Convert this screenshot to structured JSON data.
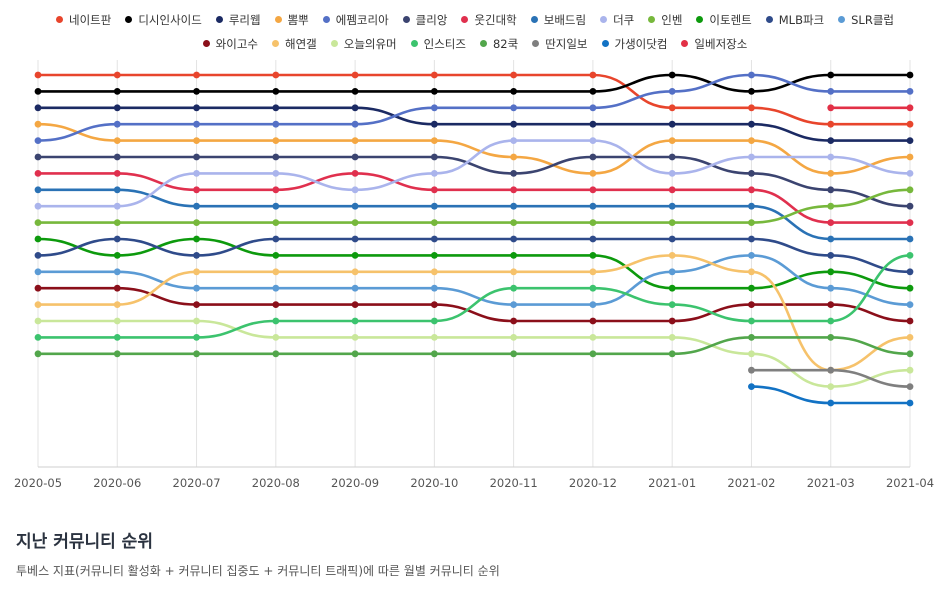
{
  "chart_data": {
    "type": "line",
    "title": "지난 커뮤니티 순위",
    "subtitle": "투베스 지표(커뮤니티 활성화 + 커뮤니티 집중도 + 커뮤니티 트래픽)에 따른 월별 커뮤니티 순위",
    "x": [
      "2020-05",
      "2020-06",
      "2020-07",
      "2020-08",
      "2020-09",
      "2020-10",
      "2020-11",
      "2020-12",
      "2021-01",
      "2021-02",
      "2021-03",
      "2021-04"
    ],
    "y_reversed": true,
    "ylim": [
      1,
      25
    ],
    "grid": "vertical",
    "legend_position": "top",
    "series": [
      {
        "name": "네이트판",
        "color": "#e8452c",
        "values": [
          1,
          1,
          1,
          1,
          1,
          1,
          1,
          1,
          3,
          3,
          4,
          4
        ]
      },
      {
        "name": "디시인사이드",
        "color": "#000000",
        "values": [
          2,
          2,
          2,
          2,
          2,
          2,
          2,
          2,
          1,
          2,
          1,
          1
        ]
      },
      {
        "name": "루리웹",
        "color": "#1b2a63",
        "values": [
          3,
          3,
          3,
          3,
          3,
          4,
          4,
          4,
          4,
          4,
          5,
          5
        ]
      },
      {
        "name": "뽐뿌",
        "color": "#f4a743",
        "values": [
          4,
          5,
          5,
          5,
          5,
          5,
          6,
          7,
          5,
          5,
          7,
          6
        ]
      },
      {
        "name": "에펨코리아",
        "color": "#5470c6",
        "values": [
          5,
          4,
          4,
          4,
          4,
          3,
          3,
          3,
          2,
          1,
          2,
          2
        ]
      },
      {
        "name": "클리앙",
        "color": "#3b4470",
        "values": [
          6,
          6,
          6,
          6,
          6,
          6,
          7,
          6,
          6,
          7,
          8,
          9
        ]
      },
      {
        "name": "웃긴대학",
        "color": "#e0304e",
        "values": [
          7,
          7,
          8,
          8,
          7,
          8,
          8,
          8,
          8,
          8,
          10,
          10
        ]
      },
      {
        "name": "보배드림",
        "color": "#2a72b5",
        "values": [
          8,
          8,
          9,
          9,
          9,
          9,
          9,
          9,
          9,
          9,
          11,
          11
        ]
      },
      {
        "name": "더쿠",
        "color": "#aab4ec",
        "values": [
          9,
          9,
          7,
          7,
          8,
          7,
          5,
          5,
          7,
          6,
          6,
          7
        ]
      },
      {
        "name": "인벤",
        "color": "#77b83c",
        "values": [
          10,
          10,
          10,
          10,
          10,
          10,
          10,
          10,
          10,
          10,
          9,
          8
        ]
      },
      {
        "name": "이토렌트",
        "color": "#0d9a0d",
        "values": [
          11,
          12,
          11,
          12,
          12,
          12,
          12,
          12,
          14,
          14,
          13,
          14
        ]
      },
      {
        "name": "MLB파크",
        "color": "#2f4b8a",
        "values": [
          12,
          11,
          12,
          11,
          11,
          11,
          11,
          11,
          11,
          11,
          12,
          13
        ]
      },
      {
        "name": "SLR클럽",
        "color": "#5b9bd5",
        "values": [
          13,
          13,
          14,
          14,
          14,
          14,
          15,
          15,
          13,
          12,
          14,
          15
        ]
      },
      {
        "name": "와이고수",
        "color": "#8b0f1a",
        "values": [
          14,
          14,
          15,
          15,
          15,
          15,
          16,
          16,
          16,
          15,
          15,
          16
        ]
      },
      {
        "name": "해연갤",
        "color": "#f6c26b",
        "values": [
          15,
          15,
          13,
          13,
          13,
          13,
          13,
          13,
          12,
          13,
          19,
          17
        ]
      },
      {
        "name": "오늘의유머",
        "color": "#c9e79a",
        "values": [
          16,
          16,
          16,
          17,
          17,
          17,
          17,
          17,
          17,
          18,
          20,
          19
        ]
      },
      {
        "name": "인스티즈",
        "color": "#3cc36e",
        "values": [
          17,
          17,
          17,
          16,
          16,
          16,
          14,
          14,
          15,
          16,
          16,
          12
        ]
      },
      {
        "name": "82쿡",
        "color": "#52a64b",
        "values": [
          18,
          18,
          18,
          18,
          18,
          18,
          18,
          18,
          18,
          17,
          17,
          18
        ]
      },
      {
        "name": "딴지일보",
        "color": "#7f7f7f",
        "values": [
          null,
          null,
          null,
          null,
          null,
          null,
          null,
          null,
          null,
          19,
          19,
          20
        ]
      },
      {
        "name": "가생이닷컴",
        "color": "#1272c4",
        "values": [
          null,
          null,
          null,
          null,
          null,
          null,
          null,
          null,
          null,
          20,
          21,
          21
        ]
      },
      {
        "name": "일베저장소",
        "color": "#e23046",
        "values": [
          null,
          null,
          null,
          null,
          null,
          null,
          null,
          null,
          null,
          null,
          3,
          3
        ]
      }
    ]
  }
}
